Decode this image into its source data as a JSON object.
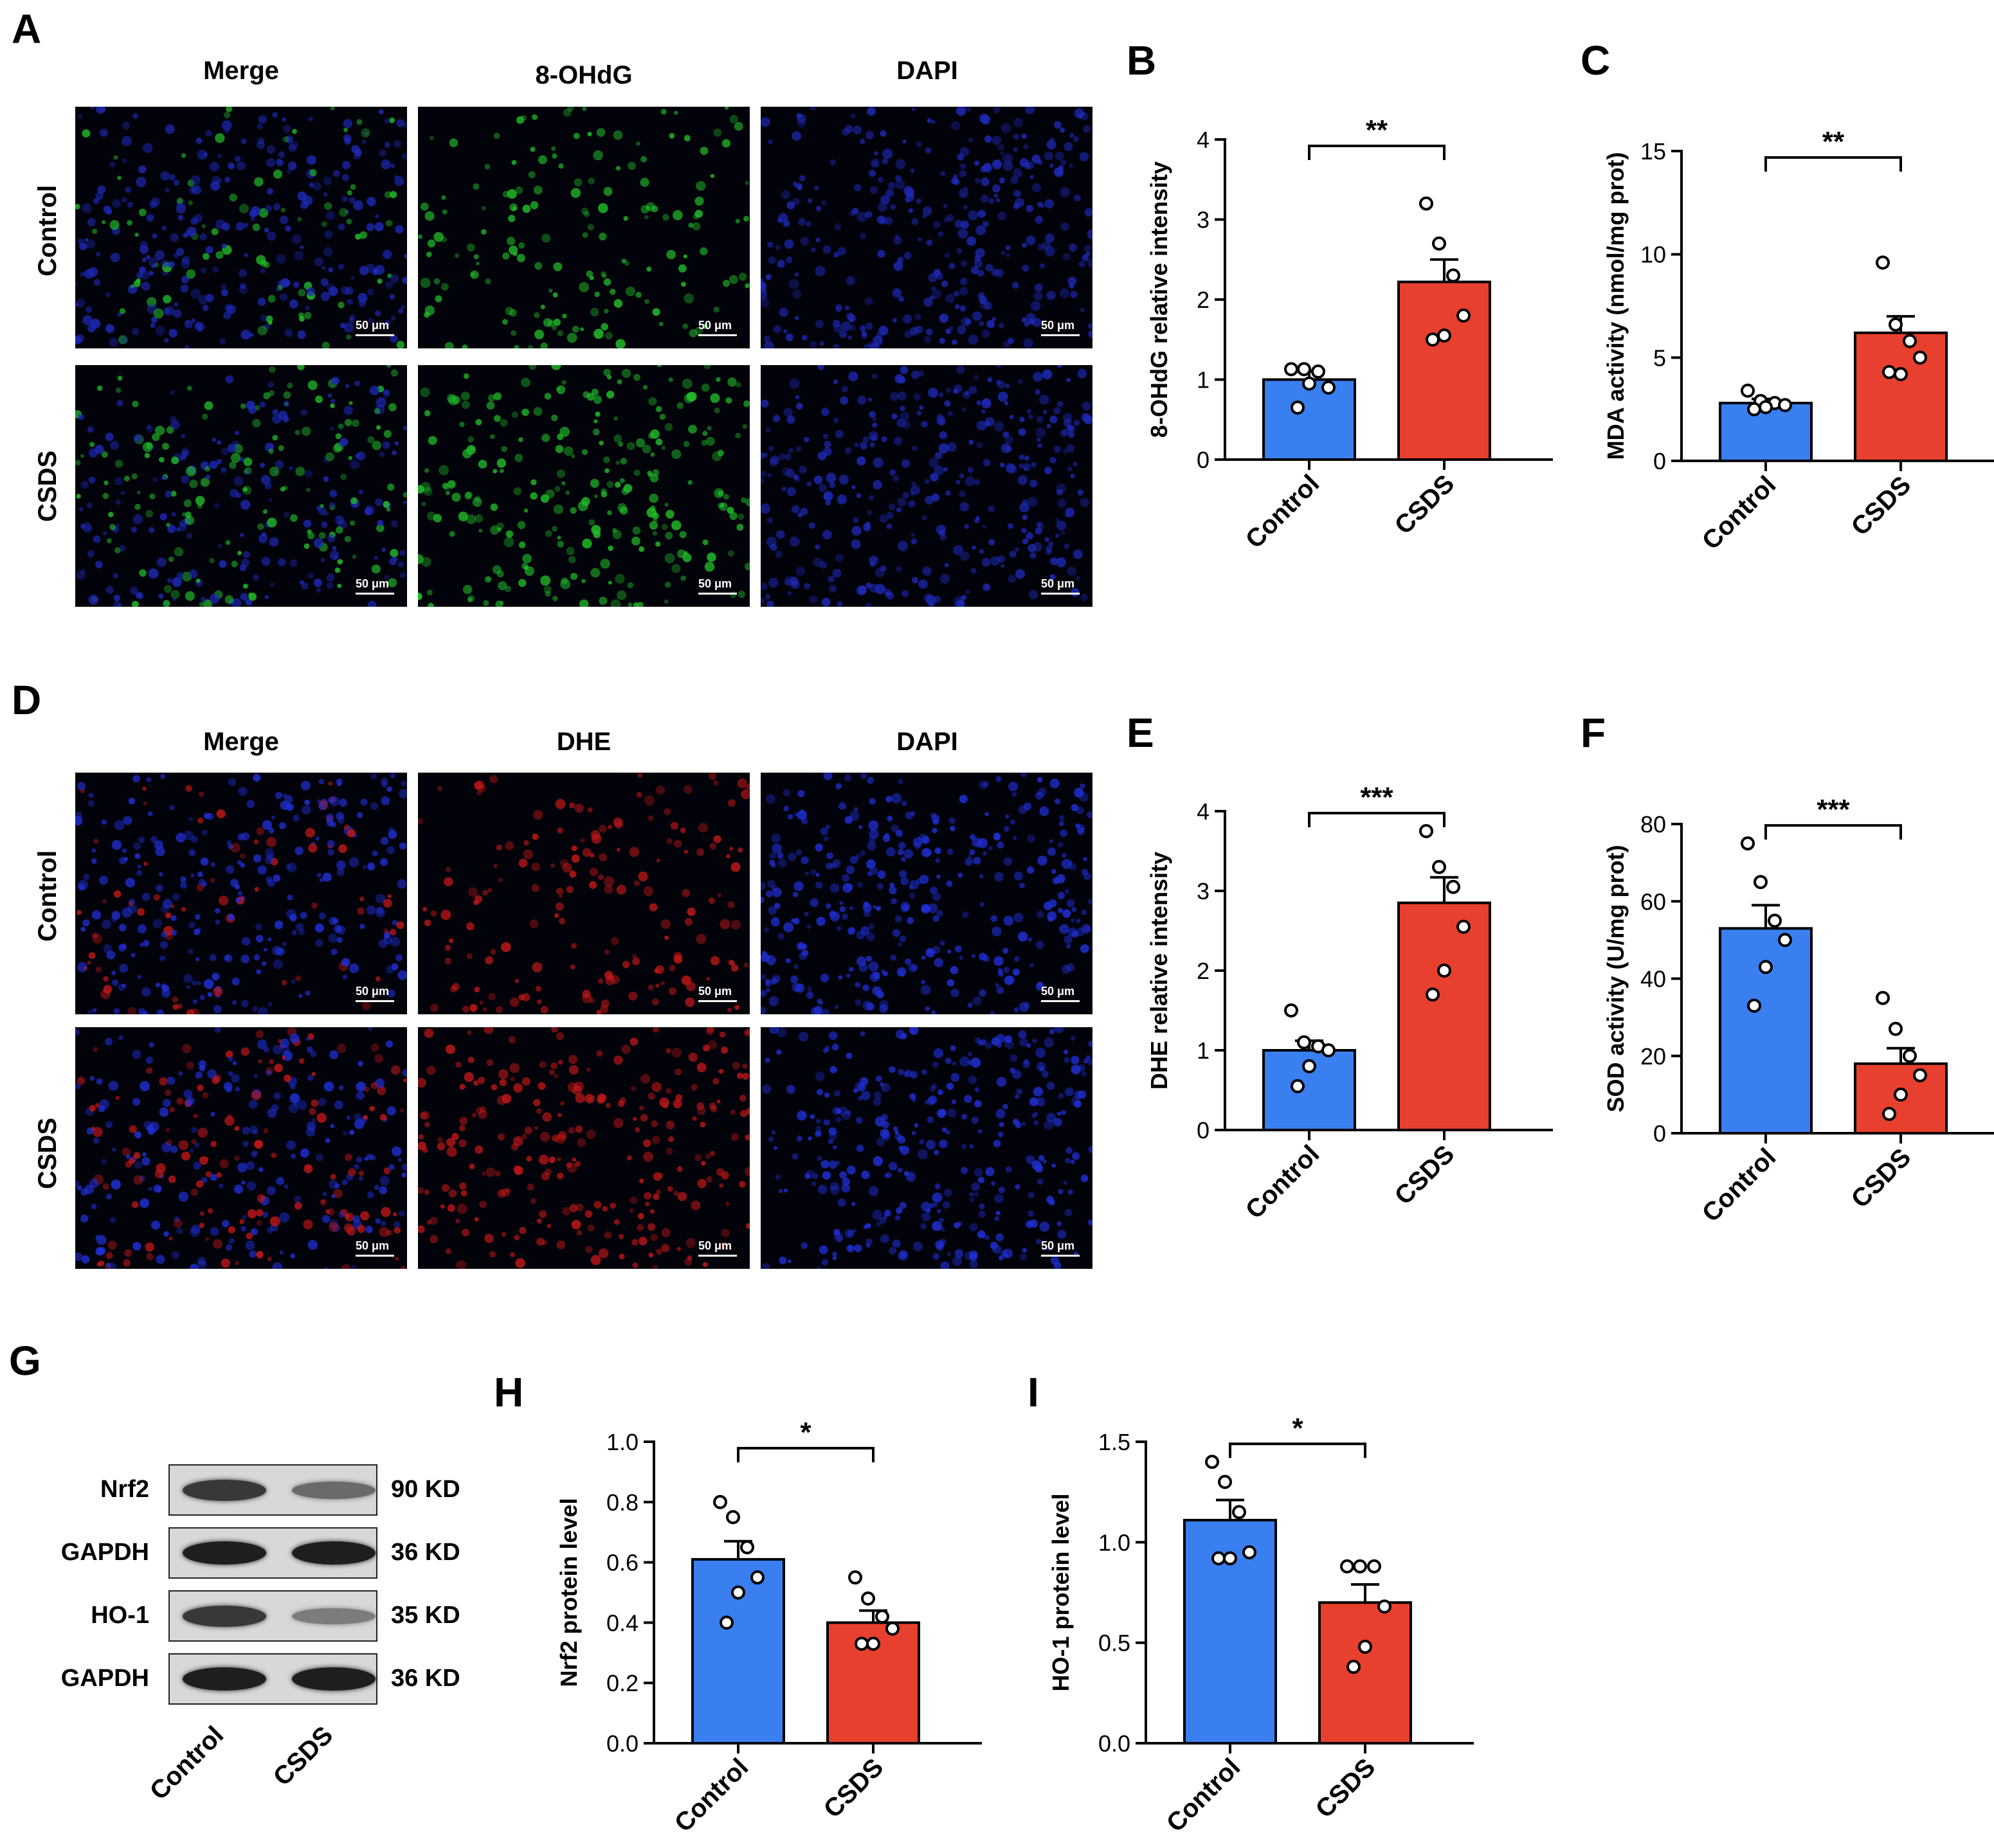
{
  "panels": {
    "A": {
      "letter": "A",
      "columns": [
        "Merge",
        "8-OHdG",
        "DAPI"
      ],
      "rows": [
        "Control",
        "CSDS"
      ],
      "scale": "50 μm",
      "channel_colors": {
        "merge": "#1a1aa8",
        "marker": "#22c02a",
        "dapi": "#1e2ab8"
      }
    },
    "D": {
      "letter": "D",
      "columns": [
        "Merge",
        "DHE",
        "DAPI"
      ],
      "rows": [
        "Control",
        "CSDS"
      ],
      "scale": "50 μm",
      "channel_colors": {
        "merge": "#5a2ad0",
        "marker": "#c01818",
        "dapi": "#2030d8"
      }
    },
    "G": {
      "letter": "G",
      "bands": [
        {
          "protein": "Nrf2",
          "size": "90 KD",
          "intensity": [
            0.85,
            0.55
          ]
        },
        {
          "protein": "GAPDH",
          "size": "36 KD",
          "intensity": [
            1.0,
            1.0
          ]
        },
        {
          "protein": "HO-1",
          "size": "35 KD",
          "intensity": [
            0.85,
            0.45
          ]
        },
        {
          "protein": "GAPDH",
          "size": "36 KD",
          "intensity": [
            1.0,
            1.0
          ]
        }
      ],
      "lanes": [
        "Control",
        "CSDS"
      ]
    }
  },
  "colors": {
    "control": "#3a7ff0",
    "csds": "#e8402e"
  },
  "chart_data": [
    {
      "id": "B",
      "letter": "B",
      "type": "bar",
      "categories": [
        "Control",
        "CSDS"
      ],
      "values": [
        1.0,
        2.22
      ],
      "sem": [
        0.1,
        0.28
      ],
      "points": [
        [
          1.13,
          1.13,
          1.1,
          0.9,
          0.95,
          0.65
        ],
        [
          3.2,
          2.7,
          2.3,
          1.8,
          1.55,
          1.5
        ]
      ],
      "ylabel": "8-OHdG relative intensity",
      "ylim": [
        0,
        4
      ],
      "yticks": [
        "0",
        "1",
        "2",
        "3",
        "4"
      ],
      "sig": "**"
    },
    {
      "id": "C",
      "letter": "C",
      "type": "bar",
      "categories": [
        "Control",
        "CSDS"
      ],
      "values": [
        2.8,
        6.2
      ],
      "sem": [
        0.2,
        0.8
      ],
      "points": [
        [
          3.4,
          2.9,
          2.8,
          2.7,
          2.6,
          2.5
        ],
        [
          9.6,
          6.6,
          5.8,
          5.0,
          4.2,
          4.3
        ]
      ],
      "ylabel": "MDA activity (nmol/mg prot)",
      "ylim": [
        0,
        15
      ],
      "yticks": [
        "0",
        "5",
        "10",
        "15"
      ],
      "sig": "**"
    },
    {
      "id": "E",
      "letter": "E",
      "type": "bar",
      "categories": [
        "Control",
        "CSDS"
      ],
      "values": [
        1.0,
        2.85
      ],
      "sem": [
        0.12,
        0.32
      ],
      "points": [
        [
          1.5,
          1.1,
          1.05,
          1.0,
          0.8,
          0.55
        ],
        [
          3.75,
          3.3,
          3.05,
          2.55,
          2.0,
          1.7
        ]
      ],
      "ylabel": "DHE relative intensity",
      "ylim": [
        0,
        4
      ],
      "yticks": [
        "0",
        "1",
        "2",
        "3",
        "4"
      ],
      "sig": "***"
    },
    {
      "id": "F",
      "letter": "F",
      "type": "bar",
      "categories": [
        "Control",
        "CSDS"
      ],
      "values": [
        53,
        18
      ],
      "sem": [
        6,
        4
      ],
      "points": [
        [
          75,
          65,
          55,
          50,
          43,
          33
        ],
        [
          35,
          27,
          20,
          15,
          10,
          5
        ]
      ],
      "ylabel": "SOD activity (U/mg prot)",
      "ylim": [
        0,
        80
      ],
      "yticks": [
        "0",
        "20",
        "40",
        "60",
        "80"
      ],
      "sig": "***"
    },
    {
      "id": "H",
      "letter": "H",
      "type": "bar",
      "categories": [
        "Control",
        "CSDS"
      ],
      "values": [
        0.61,
        0.4
      ],
      "sem": [
        0.06,
        0.04
      ],
      "points": [
        [
          0.8,
          0.75,
          0.65,
          0.55,
          0.5,
          0.4
        ],
        [
          0.55,
          0.48,
          0.42,
          0.38,
          0.33,
          0.33
        ]
      ],
      "ylabel": "Nrf2 protein level",
      "ylim": [
        0,
        1.0
      ],
      "yticks": [
        "0.0",
        "0.2",
        "0.4",
        "0.6",
        "0.8",
        "1.0"
      ],
      "sig": "*"
    },
    {
      "id": "I",
      "letter": "I",
      "type": "bar",
      "categories": [
        "Control",
        "CSDS"
      ],
      "values": [
        1.11,
        0.7
      ],
      "sem": [
        0.1,
        0.09
      ],
      "points": [
        [
          1.4,
          1.3,
          1.15,
          0.95,
          0.92,
          0.92
        ],
        [
          0.88,
          0.88,
          0.88,
          0.68,
          0.48,
          0.38
        ]
      ],
      "ylabel": "HO-1 protein level",
      "ylim": [
        0,
        1.5
      ],
      "yticks": [
        "0.0",
        "0.5",
        "1.0",
        "1.5"
      ],
      "sig": "*"
    }
  ]
}
